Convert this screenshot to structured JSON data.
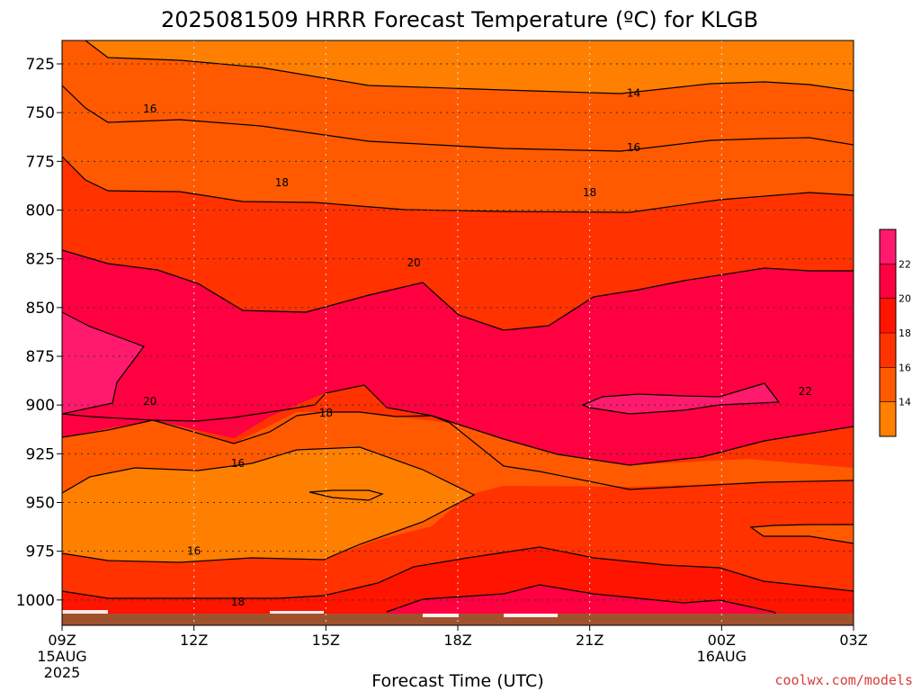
{
  "title": "2025081509 HRRR Forecast Temperature (ºC) for KLGB",
  "credit": "coolwx.com/models",
  "credit_color": "#d83b3b",
  "chart_data": {
    "type": "contour",
    "title": "2025081509 HRRR Forecast Temperature (ºC) for KLGB",
    "xlabel": "Forecast Time (UTC)",
    "ylabel": "",
    "x_ticks": [
      {
        "label": "09Z",
        "sub": [
          "15AUG",
          "2025"
        ]
      },
      {
        "label": "12Z",
        "sub": []
      },
      {
        "label": "15Z",
        "sub": []
      },
      {
        "label": "18Z",
        "sub": []
      },
      {
        "label": "21Z",
        "sub": []
      },
      {
        "label": "00Z",
        "sub": [
          "16AUG"
        ]
      },
      {
        "label": "03Z",
        "sub": []
      }
    ],
    "y_ticks": [
      725,
      750,
      775,
      800,
      825,
      850,
      875,
      900,
      925,
      950,
      975,
      1000
    ],
    "xlim_hours": [
      9,
      27
    ],
    "ylim_hPa": [
      713,
      1013
    ],
    "grid": true,
    "contour_levels": [
      14,
      16,
      18,
      20,
      22
    ],
    "contour_labels": [
      {
        "text": "14",
        "x": 22.0,
        "y": 740
      },
      {
        "text": "16",
        "x": 11.0,
        "y": 748
      },
      {
        "text": "16",
        "x": 22.0,
        "y": 768
      },
      {
        "text": "18",
        "x": 14.0,
        "y": 786
      },
      {
        "text": "18",
        "x": 21.0,
        "y": 791
      },
      {
        "text": "20",
        "x": 17.0,
        "y": 827
      },
      {
        "text": "22",
        "x": 25.9,
        "y": 893
      },
      {
        "text": "20",
        "x": 11.0,
        "y": 898
      },
      {
        "text": "18",
        "x": 15.0,
        "y": 904
      },
      {
        "text": "16",
        "x": 13.0,
        "y": 930
      },
      {
        "text": "16",
        "x": 12.0,
        "y": 975
      },
      {
        "text": "18",
        "x": 13.0,
        "y": 1001
      }
    ],
    "surface_color": "#a0522d",
    "colorbar": {
      "levels": [
        12,
        14,
        16,
        18,
        20,
        22,
        24
      ],
      "tick_labels": [
        "14",
        "16",
        "18",
        "20",
        "22"
      ],
      "colors": [
        "#ff7f00",
        "#ff5a00",
        "#ff3200",
        "#ff1400",
        "#ff0040",
        "#ff1a6e"
      ]
    }
  }
}
